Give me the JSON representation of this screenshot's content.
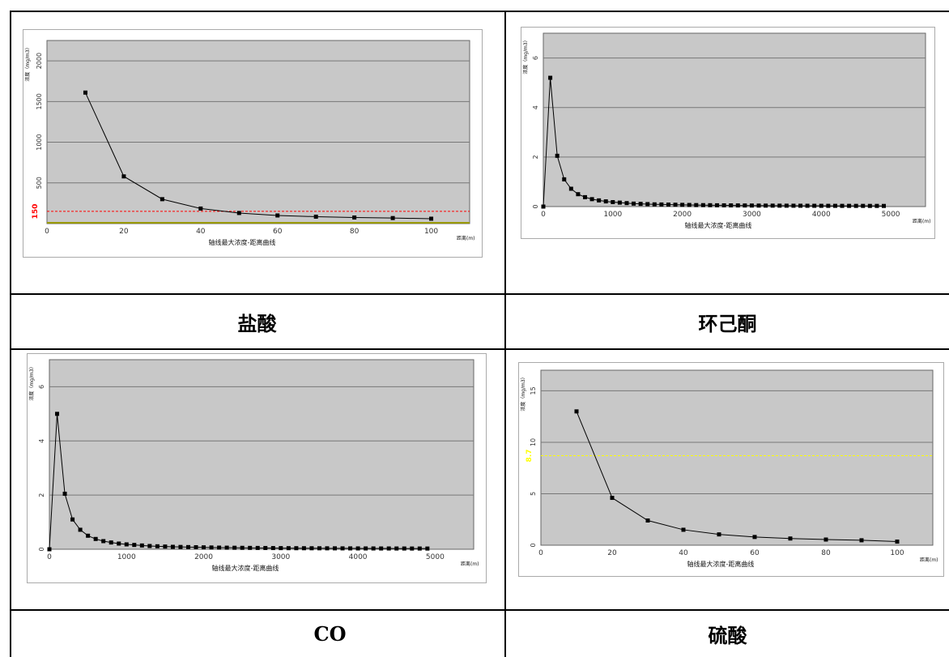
{
  "captions": [
    "盐酸",
    "环己酮",
    "CO",
    "硫酸"
  ],
  "chart_data": [
    {
      "type": "line",
      "xlabel": "轴线最大浓度-距离曲线",
      "ylabel": "浓度（mg/m3）",
      "x_unit": "距离(m)",
      "xlim": [
        0,
        110
      ],
      "ylim": [
        0,
        2250
      ],
      "xticks": [
        0,
        20,
        40,
        60,
        80,
        100
      ],
      "yticks": [
        500,
        1000,
        1500,
        2000
      ],
      "grid": true,
      "x": [
        10,
        20,
        30,
        40,
        50,
        60,
        70,
        80,
        90,
        100
      ],
      "y": [
        1610,
        580,
        300,
        185,
        130,
        100,
        85,
        75,
        68,
        60
      ],
      "threshold": {
        "value": 150,
        "label": "150",
        "color": "#ff0000"
      },
      "baseline_color": "#999900"
    },
    {
      "type": "line",
      "xlabel": "轴线最大浓度-距离曲线",
      "ylabel": "浓度（mg/m3）",
      "x_unit": "距离(m)",
      "xlim": [
        0,
        5500
      ],
      "ylim": [
        0,
        7
      ],
      "xticks": [
        0,
        1000,
        2000,
        3000,
        4000,
        5000
      ],
      "yticks": [
        0,
        2,
        4,
        6
      ],
      "grid": true,
      "x": [
        0,
        100,
        200,
        300,
        400,
        500,
        600,
        700,
        800,
        900,
        1000,
        1100,
        1200,
        1300,
        1400,
        1500,
        1600,
        1700,
        1800,
        1900,
        2000,
        2100,
        2200,
        2300,
        2400,
        2500,
        2600,
        2700,
        2800,
        2900,
        3000,
        3100,
        3200,
        3300,
        3400,
        3500,
        3600,
        3700,
        3800,
        3900,
        4000,
        4100,
        4200,
        4300,
        4400,
        4500,
        4600,
        4700,
        4800,
        4900
      ],
      "y": [
        0,
        5.2,
        2.05,
        1.1,
        0.72,
        0.5,
        0.38,
        0.3,
        0.25,
        0.21,
        0.18,
        0.16,
        0.14,
        0.12,
        0.11,
        0.1,
        0.09,
        0.085,
        0.08,
        0.075,
        0.07,
        0.065,
        0.06,
        0.058,
        0.055,
        0.052,
        0.05,
        0.048,
        0.046,
        0.044,
        0.042,
        0.04,
        0.039,
        0.038,
        0.037,
        0.036,
        0.035,
        0.034,
        0.033,
        0.032,
        0.031,
        0.03,
        0.03,
        0.029,
        0.029,
        0.028,
        0.028,
        0.027,
        0.027,
        0.026
      ]
    },
    {
      "type": "line",
      "xlabel": "轴线最大浓度-距离曲线",
      "ylabel": "浓度（mg/m3）",
      "x_unit": "距离(m)",
      "xlim": [
        0,
        5500
      ],
      "ylim": [
        0,
        7
      ],
      "xticks": [
        0,
        1000,
        2000,
        3000,
        4000,
        5000
      ],
      "yticks": [
        0,
        2,
        4,
        6
      ],
      "grid": true,
      "x": [
        0,
        100,
        200,
        300,
        400,
        500,
        600,
        700,
        800,
        900,
        1000,
        1100,
        1200,
        1300,
        1400,
        1500,
        1600,
        1700,
        1800,
        1900,
        2000,
        2100,
        2200,
        2300,
        2400,
        2500,
        2600,
        2700,
        2800,
        2900,
        3000,
        3100,
        3200,
        3300,
        3400,
        3500,
        3600,
        3700,
        3800,
        3900,
        4000,
        4100,
        4200,
        4300,
        4400,
        4500,
        4600,
        4700,
        4800,
        4900
      ],
      "y": [
        0,
        5.0,
        2.05,
        1.1,
        0.72,
        0.5,
        0.38,
        0.3,
        0.25,
        0.21,
        0.18,
        0.16,
        0.14,
        0.12,
        0.11,
        0.1,
        0.09,
        0.085,
        0.08,
        0.075,
        0.07,
        0.065,
        0.06,
        0.058,
        0.055,
        0.052,
        0.05,
        0.048,
        0.046,
        0.044,
        0.042,
        0.04,
        0.039,
        0.038,
        0.037,
        0.036,
        0.035,
        0.034,
        0.033,
        0.032,
        0.031,
        0.03,
        0.03,
        0.029,
        0.029,
        0.028,
        0.028,
        0.027,
        0.027,
        0.026
      ]
    },
    {
      "type": "line",
      "xlabel": "轴线最大浓度-距离曲线",
      "ylabel": "浓度（mg/m3）",
      "x_unit": "距离(m)",
      "xlim": [
        0,
        110
      ],
      "ylim": [
        0,
        17
      ],
      "xticks": [
        0,
        20,
        40,
        60,
        80,
        100
      ],
      "yticks": [
        0,
        5,
        10,
        15
      ],
      "grid": true,
      "x": [
        10,
        20,
        30,
        40,
        50,
        60,
        70,
        80,
        90,
        100
      ],
      "y": [
        13.0,
        4.6,
        2.4,
        1.5,
        1.05,
        0.8,
        0.65,
        0.55,
        0.48,
        0.35
      ],
      "threshold": {
        "value": 8.7,
        "label": "8.7",
        "color": "#ffff00"
      }
    }
  ]
}
